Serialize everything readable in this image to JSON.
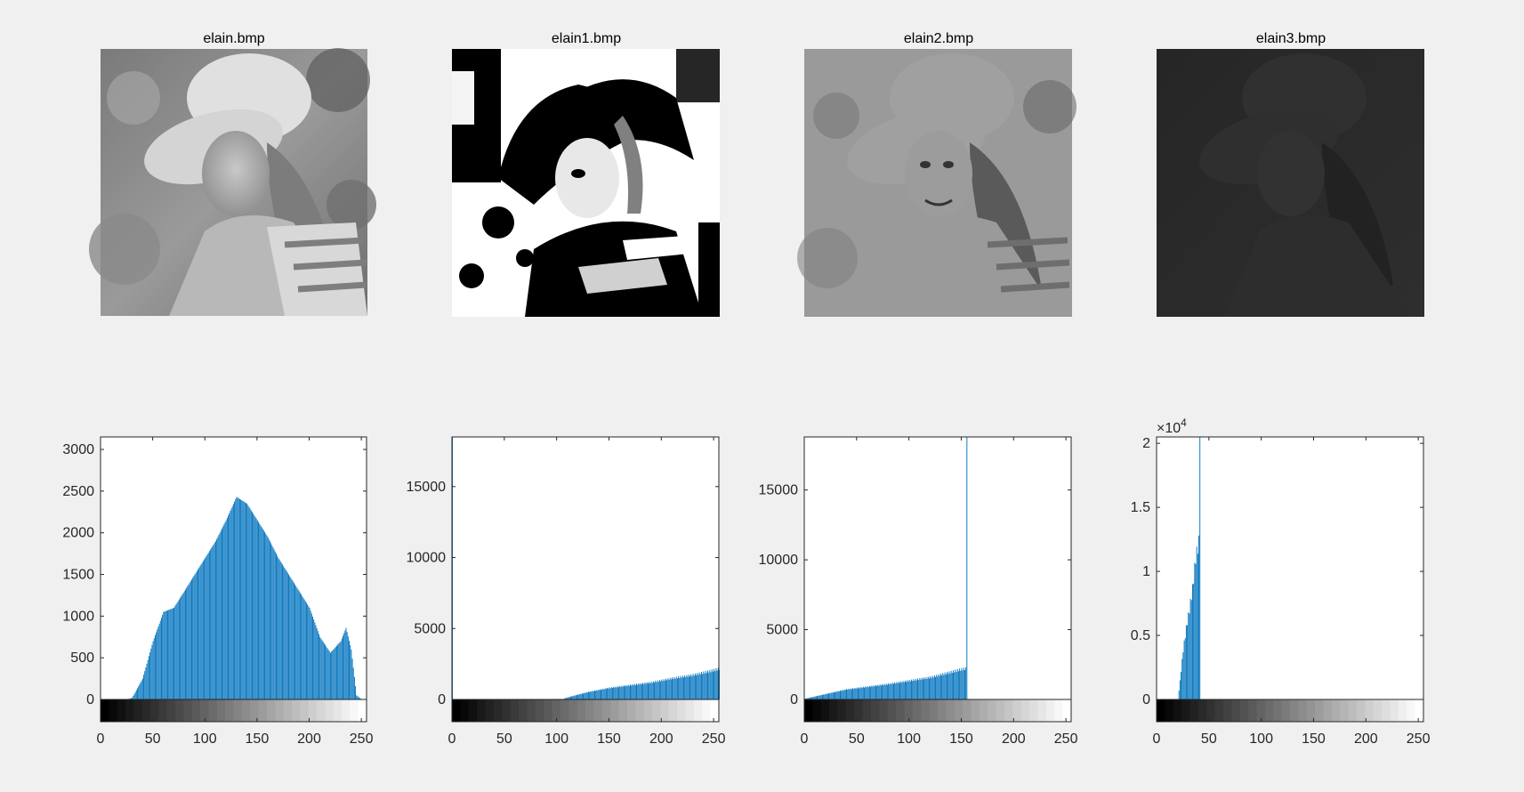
{
  "figure": {
    "background": "#f0f0f0",
    "bar_color": "#0072bd"
  },
  "images": [
    {
      "title": "elain.bmp",
      "variant": "original"
    },
    {
      "title": "elain1.bmp",
      "variant": "high-contrast"
    },
    {
      "title": "elain2.bmp",
      "variant": "compressed-upper"
    },
    {
      "title": "elain3.bmp",
      "variant": "dark"
    }
  ],
  "chart_data": [
    {
      "type": "bar",
      "title": "",
      "xlabel": "",
      "ylabel": "",
      "xlim": [
        0,
        255
      ],
      "ylim": [
        0,
        3150
      ],
      "xticks": [
        0,
        50,
        100,
        150,
        200,
        250
      ],
      "yticks": [
        0,
        500,
        1000,
        1500,
        2000,
        2500,
        3000
      ],
      "ytick_labels": [
        "0",
        "500",
        "1000",
        "1500",
        "2000",
        "2500",
        "3000"
      ],
      "exponent": "",
      "colorbar": "grayscale 0-255",
      "profile": [
        [
          25,
          0
        ],
        [
          30,
          20
        ],
        [
          40,
          250
        ],
        [
          50,
          700
        ],
        [
          60,
          1050
        ],
        [
          70,
          1100
        ],
        [
          80,
          1300
        ],
        [
          90,
          1500
        ],
        [
          100,
          1700
        ],
        [
          110,
          1900
        ],
        [
          120,
          2150
        ],
        [
          130,
          2430
        ],
        [
          140,
          2350
        ],
        [
          150,
          2150
        ],
        [
          160,
          1950
        ],
        [
          170,
          1700
        ],
        [
          180,
          1500
        ],
        [
          190,
          1300
        ],
        [
          200,
          1100
        ],
        [
          210,
          750
        ],
        [
          220,
          560
        ],
        [
          230,
          700
        ],
        [
          235,
          860
        ],
        [
          240,
          600
        ],
        [
          245,
          50
        ],
        [
          250,
          0
        ]
      ]
    },
    {
      "type": "bar",
      "title": "",
      "xlabel": "",
      "ylabel": "",
      "xlim": [
        0,
        255
      ],
      "ylim": [
        0,
        18500
      ],
      "xticks": [
        0,
        50,
        100,
        150,
        200,
        250
      ],
      "yticks": [
        0,
        5000,
        10000,
        15000
      ],
      "ytick_labels": [
        "0",
        "5000",
        "10000",
        "15000"
      ],
      "exponent": "",
      "colorbar": "grayscale 0-255",
      "spike": {
        "x": 0,
        "y": 18500
      },
      "profile": [
        [
          0,
          0
        ],
        [
          105,
          0
        ],
        [
          110,
          150
        ],
        [
          130,
          550
        ],
        [
          150,
          850
        ],
        [
          170,
          1050
        ],
        [
          190,
          1250
        ],
        [
          210,
          1550
        ],
        [
          230,
          1800
        ],
        [
          250,
          2150
        ],
        [
          255,
          2250
        ]
      ]
    },
    {
      "type": "bar",
      "title": "",
      "xlabel": "",
      "ylabel": "",
      "xlim": [
        0,
        255
      ],
      "ylim": [
        0,
        18800
      ],
      "xticks": [
        0,
        50,
        100,
        150,
        200,
        250
      ],
      "yticks": [
        0,
        5000,
        10000,
        15000
      ],
      "ytick_labels": [
        "0",
        "5000",
        "10000",
        "15000"
      ],
      "exponent": "",
      "colorbar": "grayscale 0-255",
      "spike": {
        "x": 155,
        "y": 18800
      },
      "profile": [
        [
          0,
          50
        ],
        [
          20,
          400
        ],
        [
          40,
          750
        ],
        [
          60,
          950
        ],
        [
          80,
          1150
        ],
        [
          100,
          1400
        ],
        [
          120,
          1650
        ],
        [
          140,
          2050
        ],
        [
          150,
          2250
        ],
        [
          154,
          2300
        ],
        [
          155,
          0
        ],
        [
          255,
          0
        ]
      ]
    },
    {
      "type": "bar",
      "title": "",
      "xlabel": "",
      "ylabel": "",
      "xlim": [
        0,
        255
      ],
      "ylim": [
        0,
        20500
      ],
      "xticks": [
        0,
        50,
        100,
        150,
        200,
        250
      ],
      "yticks": [
        0,
        5000,
        10000,
        15000,
        20000
      ],
      "ytick_labels": [
        "0",
        "0.5",
        "1",
        "1.5",
        "2"
      ],
      "exponent": "4",
      "colorbar": "grayscale 0-255",
      "spike": {
        "x": 41,
        "y": 20500
      },
      "profile": [
        [
          20,
          0
        ],
        [
          22,
          1500
        ],
        [
          25,
          4000
        ],
        [
          28,
          5800
        ],
        [
          31,
          7300
        ],
        [
          34,
          9000
        ],
        [
          37,
          11500
        ],
        [
          40,
          12800
        ],
        [
          41,
          0
        ],
        [
          255,
          0
        ]
      ]
    }
  ]
}
